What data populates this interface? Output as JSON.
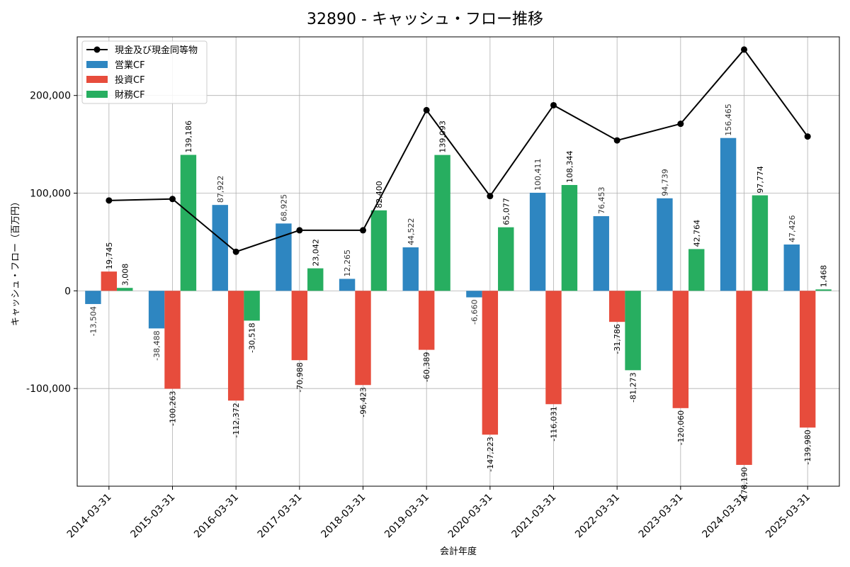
{
  "chart_data": {
    "type": "bar",
    "title": "32890 - キャッシュ・フロー推移",
    "xlabel": "会計年度",
    "ylabel": "キャッシュ・フロー（百万円）",
    "categories": [
      "2014-03-31",
      "2015-03-31",
      "2016-03-31",
      "2017-03-31",
      "2018-03-31",
      "2019-03-31",
      "2020-03-31",
      "2021-03-31",
      "2022-03-31",
      "2023-03-31",
      "2024-03-31",
      "2025-03-31"
    ],
    "ylim": [
      -200000,
      260000
    ],
    "yticks": [
      -100000,
      0,
      100000,
      200000
    ],
    "ytick_labels": [
      "-100,000",
      "0",
      "100,000",
      "200,000"
    ],
    "grid": true,
    "legend_position": "top-left",
    "series": [
      {
        "name": "営業CF",
        "kind": "bar",
        "color": "#2e86c1",
        "values": [
          -13504,
          -38488,
          87922,
          68925,
          12265,
          44522,
          -6660,
          100411,
          76453,
          94739,
          156465,
          47426
        ],
        "labels": [
          "-13,504",
          "-38,488",
          "87,922",
          "68,925",
          "12,265",
          "44,522",
          "-6,660",
          "100,411",
          "76,453",
          "94,739",
          "156,465",
          "47,426"
        ]
      },
      {
        "name": "投資CF",
        "kind": "bar",
        "color": "#e74c3c",
        "values": [
          19745,
          -100263,
          -112372,
          -70988,
          -96423,
          -60389,
          -147223,
          -116031,
          -31786,
          -120060,
          -178190,
          -139980
        ],
        "labels": [
          "19,745",
          "-100,263",
          "-112,372",
          "-70,988",
          "-96,423",
          "-60,389",
          "-147,223",
          "-116,031",
          "-31,786",
          "-120,060",
          "-178,190",
          "-139,980"
        ]
      },
      {
        "name": "財務CF",
        "kind": "bar",
        "color": "#27ae60",
        "values": [
          3008,
          139186,
          -30518,
          23042,
          82400,
          139093,
          65077,
          108344,
          -81273,
          42764,
          97774,
          1468
        ],
        "labels": [
          "3,008",
          "139,186",
          "-30,518",
          "23,042",
          "82,400",
          "139,093",
          "65,077",
          "108,344",
          "-81,273",
          "42,764",
          "97,774",
          "1,468"
        ]
      },
      {
        "name": "現金及び現金同等物",
        "kind": "line",
        "color": "#000000",
        "values": [
          92500,
          94000,
          40000,
          62000,
          62000,
          185000,
          97000,
          190000,
          154000,
          171000,
          247000,
          158000
        ]
      }
    ]
  }
}
